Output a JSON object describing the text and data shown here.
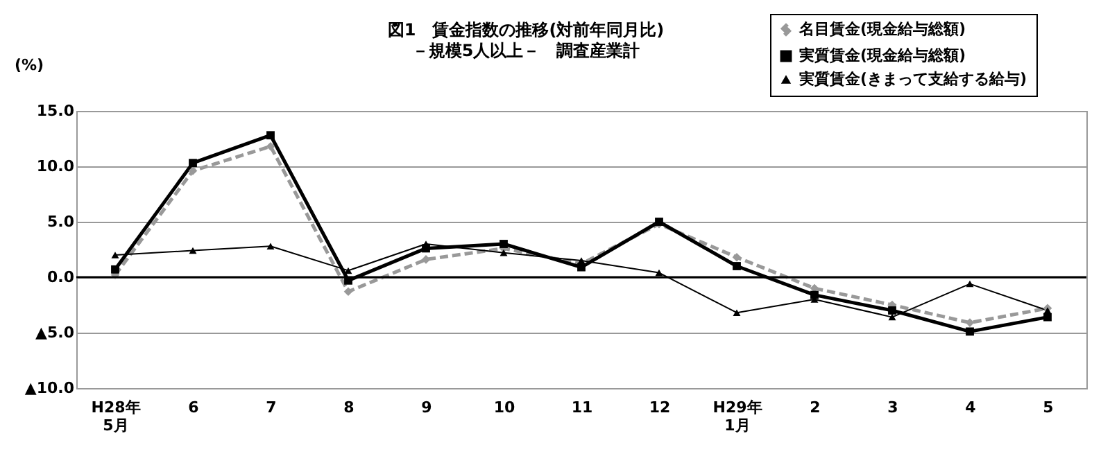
{
  "chart_data": {
    "type": "line",
    "title": "図1　賃金指数の推移(対前年同月比)",
    "subtitle": "－規模5人以上－　調査産業計",
    "ylabel": "(%)",
    "categories": [
      "H28年\n5月",
      "6",
      "7",
      "8",
      "9",
      "10",
      "11",
      "12",
      "H29年\n1月",
      "2",
      "3",
      "4",
      "5"
    ],
    "series": [
      {
        "name": "名目賃金(現金給与総額)",
        "color": "#999999",
        "line_style": "dashed",
        "marker": "diamond",
        "values": [
          0.2,
          9.6,
          11.8,
          -1.3,
          1.6,
          2.6,
          1.2,
          4.8,
          1.8,
          -1.0,
          -2.5,
          -4.1,
          -2.8
        ]
      },
      {
        "name": "実質賃金(現金給与総額)",
        "color": "#000000",
        "line_style": "solid",
        "marker": "square",
        "values": [
          0.7,
          10.3,
          12.8,
          -0.3,
          2.6,
          3.0,
          0.9,
          5.0,
          1.0,
          -1.6,
          -3.0,
          -4.9,
          -3.6
        ]
      },
      {
        "name": "実質賃金(きまって支給する給与)",
        "color": "#000000",
        "line_style": "solid",
        "marker": "triangle",
        "values": [
          2.0,
          2.4,
          2.8,
          0.6,
          3.0,
          2.2,
          1.5,
          0.4,
          -3.2,
          -2.0,
          -3.6,
          -0.6,
          -3.0
        ]
      }
    ],
    "ylim": [
      -10,
      15
    ],
    "yticks": [
      {
        "value": -10,
        "label": "▲10.0"
      },
      {
        "value": -5,
        "label": "▲5.0"
      },
      {
        "value": 0,
        "label": "0.0"
      },
      {
        "value": 5,
        "label": "5.0"
      },
      {
        "value": 10,
        "label": "10.0"
      },
      {
        "value": 15,
        "label": "15.0"
      }
    ],
    "ref_lines": [
      {
        "axis": "y",
        "value": 0,
        "color": "#000000"
      }
    ],
    "grid": "y",
    "legend": "top right"
  }
}
